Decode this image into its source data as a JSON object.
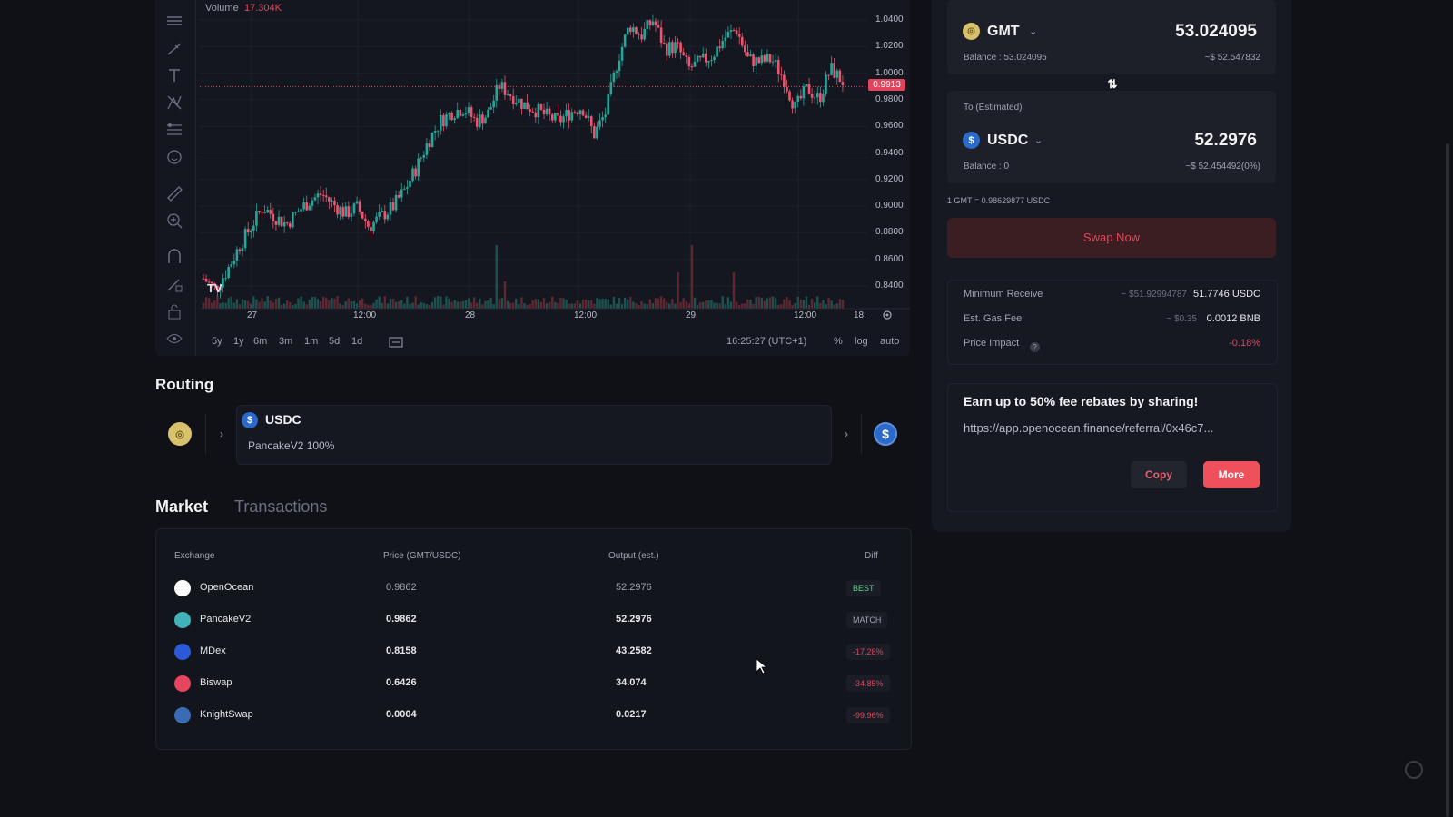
{
  "chart": {
    "volume_label": "Volume",
    "volume_value": "17.304K",
    "current_price_tag": "0.9913",
    "y_ticks": [
      "1.0400",
      "1.0200",
      "1.0000",
      "0.9800",
      "0.9600",
      "0.9400",
      "0.9200",
      "0.9000",
      "0.8800",
      "0.8600",
      "0.8400"
    ],
    "x_ticks": [
      "27",
      "12:00",
      "28",
      "12:00",
      "29",
      "12:00",
      "18:"
    ],
    "logo": "TV",
    "ranges": [
      "5y",
      "1y",
      "6m",
      "3m",
      "1m",
      "5d",
      "1d"
    ],
    "clock": "16:25:27 (UTC+1)",
    "options": [
      "%",
      "log",
      "auto"
    ],
    "colors": {
      "up": "#26a69a",
      "down": "#ef5370"
    }
  },
  "chart_data": {
    "type": "candlestick",
    "ylim": [
      0.83,
      1.05
    ],
    "close_path": [
      0.846,
      0.838,
      0.852,
      0.87,
      0.885,
      0.9,
      0.893,
      0.887,
      0.897,
      0.905,
      0.91,
      0.902,
      0.895,
      0.9,
      0.885,
      0.893,
      0.9,
      0.913,
      0.93,
      0.95,
      0.965,
      0.972,
      0.975,
      0.965,
      0.97,
      0.992,
      0.985,
      0.978,
      0.974,
      0.969,
      0.965,
      0.972,
      0.976,
      0.955,
      0.972,
      1.012,
      1.038,
      1.03,
      1.042,
      1.02,
      1.022,
      1.005,
      1.01,
      1.015,
      1.028,
      1.035,
      1.012,
      1.01,
      1.012,
      0.998,
      0.975,
      0.99,
      0.982,
      1.005,
      0.995
    ]
  },
  "routing": {
    "title": "Routing",
    "token": "USDC",
    "pool": "PancakeV2 100%"
  },
  "market": {
    "tabs": [
      "Market",
      "Transactions"
    ],
    "headers": [
      "Exchange",
      "Price (GMT/USDC)",
      "Output (est.)",
      "Diff"
    ],
    "rows": [
      {
        "exchange": "OpenOcean",
        "price": "0.9862",
        "output": "52.2976",
        "diff": "BEST",
        "icon_color": "#ffffff"
      },
      {
        "exchange": "PancakeV2",
        "price": "0.9862",
        "output": "52.2976",
        "diff": "MATCH",
        "icon_color": "#3fb3b8"
      },
      {
        "exchange": "MDex",
        "price": "0.8158",
        "output": "43.2582",
        "diff": "-17.28%",
        "icon_color": "#2a5ad8"
      },
      {
        "exchange": "Biswap",
        "price": "0.6426",
        "output": "34.074",
        "diff": "-34.85%",
        "icon_color": "#e64560"
      },
      {
        "exchange": "KnightSwap",
        "price": "0.0004",
        "output": "0.0217",
        "diff": "-99.96%",
        "icon_color": "#3b6bb5"
      }
    ]
  },
  "swap": {
    "from": {
      "symbol": "GMT",
      "amount": "53.024095",
      "balance": "Balance : 53.024095",
      "usd": "~$ 52.547832"
    },
    "to": {
      "label": "To (Estimated)",
      "symbol": "USDC",
      "amount": "52.2976",
      "balance": "Balance : 0",
      "usd": "~$ 52.454492(0%)"
    },
    "rate": "1 GMT = 0.98629877 USDC",
    "swap_button": "Swap Now",
    "details": [
      {
        "label": "Minimum Receive",
        "approx": "~ $51.92994787",
        "value": "51.7746 USDC"
      },
      {
        "label": "Est. Gas Fee",
        "approx": "~ $0.35",
        "value": "0.0012 BNB"
      },
      {
        "label": "Price Impact",
        "approx": "",
        "value": "-0.18%"
      }
    ],
    "referral": {
      "title": "Earn up to 50% fee rebates by sharing!",
      "link": "https://app.openocean.finance/referral/0x46c7...",
      "copy": "Copy",
      "more": "More"
    }
  }
}
